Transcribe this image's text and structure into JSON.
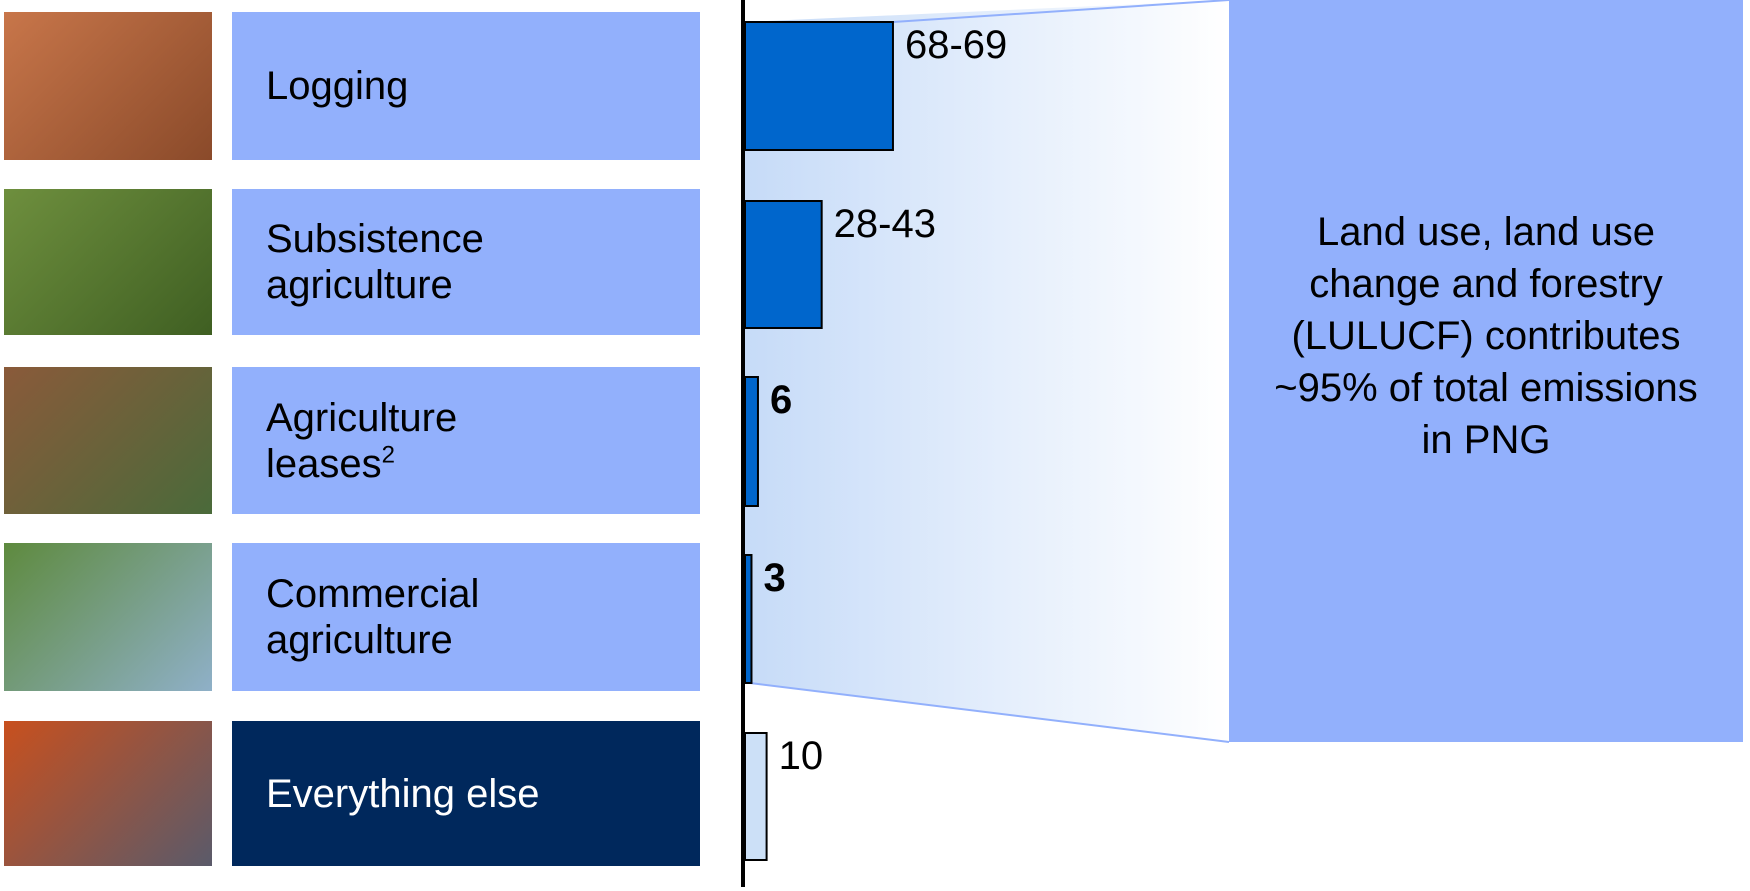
{
  "chart_data": {
    "type": "bar",
    "orientation": "horizontal",
    "categories": [
      "Logging",
      "Subsistence agriculture",
      "Agriculture leases",
      "Commercial agriculture",
      "Everything else"
    ],
    "category_notes": [
      null,
      null,
      "2",
      null,
      null
    ],
    "values": [
      68.5,
      35.5,
      6,
      3,
      10
    ],
    "value_labels": [
      "68-69",
      "28-43",
      "6",
      "3",
      "10"
    ],
    "colors": [
      "#0066cc",
      "#0066cc",
      "#0066cc",
      "#0066cc",
      "#cce0f7"
    ],
    "label_box_colors": [
      "#92b0fc",
      "#92b0fc",
      "#92b0fc",
      "#92b0fc",
      "#00285c"
    ],
    "callout": "Land use, land use change and forestry (LULUCF) contributes ~95% of total emissions in PNG"
  }
}
